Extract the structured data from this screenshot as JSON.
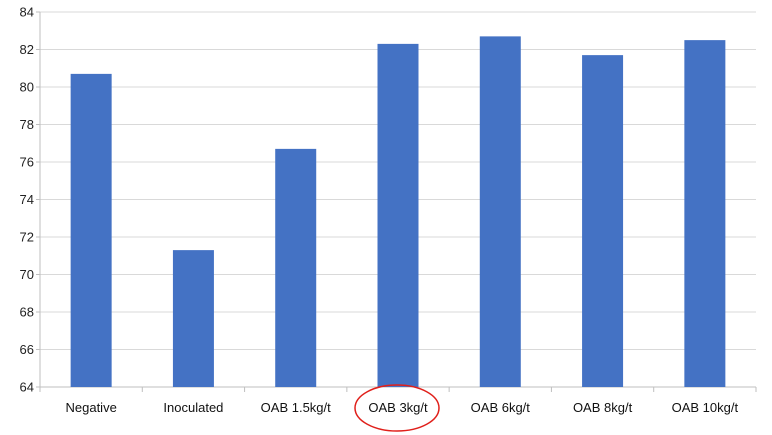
{
  "chart_data": {
    "type": "bar",
    "title": "",
    "xlabel": "",
    "ylabel": "",
    "categories": [
      "Negative",
      "Inoculated",
      "OAB 1.5kg/t",
      "OAB 3kg/t",
      "OAB 6kg/t",
      "OAB 8kg/t",
      "OAB 10kg/t"
    ],
    "values": [
      80.7,
      71.3,
      76.7,
      82.3,
      82.7,
      81.7,
      82.5
    ],
    "ylim": [
      64,
      84
    ],
    "yticks": [
      64,
      66,
      68,
      70,
      72,
      74,
      76,
      78,
      80,
      82,
      84
    ],
    "grid": true,
    "legend": "none",
    "bar_color": "#4472C4",
    "grid_color": "#d9d9d9",
    "highlight": {
      "category": "OAB 3kg/t",
      "shape": "ellipse",
      "color": "#e0201b"
    }
  }
}
